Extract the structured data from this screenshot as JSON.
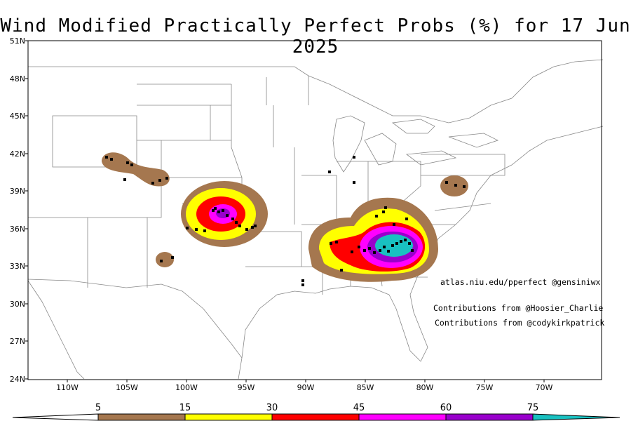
{
  "title": "Wind Modified Practically Perfect Probs (%) for 17 Jun 2025",
  "credits": {
    "site": "atlas.niu.edu/pperfect @gensiniwx",
    "contrib1": "Contributions from @Hoosier_Charlie",
    "contrib2": "Contributions from @codykirkpatrick"
  },
  "lat_labels": [
    "51N",
    "48N",
    "45N",
    "42N",
    "39N",
    "36N",
    "33N",
    "30N",
    "27N",
    "24N"
  ],
  "lon_labels": [
    "110W",
    "105W",
    "100W",
    "95W",
    "90W",
    "85W",
    "80W",
    "75W",
    "70W"
  ],
  "colorbar": {
    "labels": [
      "5",
      "15",
      "30",
      "45",
      "60",
      "75"
    ],
    "colors": [
      "#a5774f",
      "#ffff00",
      "#ff0000",
      "#ff00ff",
      "#9900cc",
      "#19c1c1"
    ]
  }
}
